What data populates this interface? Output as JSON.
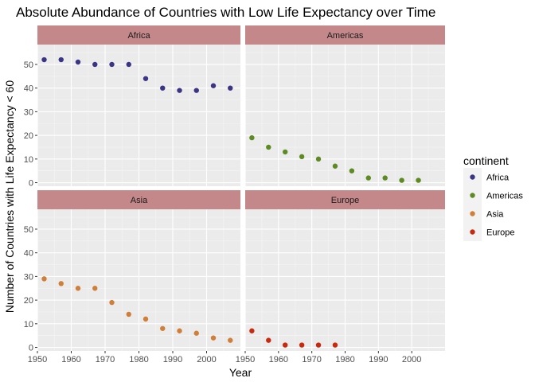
{
  "chart_data": {
    "type": "scatter",
    "title": "Absolute Abundance of Countries with Low Life Expectancy over Time",
    "xlabel": "Year",
    "ylabel": "Number of Countries with Life Expectancy < 60",
    "xlim": [
      1950,
      2010
    ],
    "ylim": [
      0,
      60
    ],
    "x_ticks": [
      1950,
      1960,
      1970,
      1980,
      1990,
      2000
    ],
    "y_ticks": [
      0,
      10,
      20,
      30,
      40,
      50
    ],
    "grid": true,
    "facet": "wrap 2x2",
    "legend": {
      "title": "continent",
      "placement": "right",
      "entries": [
        "Africa",
        "Americas",
        "Asia",
        "Europe"
      ]
    },
    "colors": {
      "Africa": "#3b3585",
      "Americas": "#5d8a22",
      "Asia": "#d07f3a",
      "Europe": "#c8290f",
      "strip": "#c4888a",
      "panel": "#ebebeb",
      "grid": "#ffffff"
    },
    "panels": [
      {
        "name": "Africa",
        "x": [
          1952,
          1957,
          1962,
          1967,
          1972,
          1977,
          1982,
          1987,
          1992,
          1997,
          2002,
          2007
        ],
        "y": [
          52,
          52,
          51,
          50,
          50,
          50,
          44,
          40,
          39,
          39,
          41,
          40
        ]
      },
      {
        "name": "Americas",
        "x": [
          1952,
          1957,
          1962,
          1967,
          1972,
          1977,
          1982,
          1987,
          1992,
          1997,
          2002
        ],
        "y": [
          19,
          15,
          13,
          11,
          10,
          7,
          5,
          2,
          2,
          1,
          1
        ]
      },
      {
        "name": "Asia",
        "x": [
          1952,
          1957,
          1962,
          1967,
          1972,
          1977,
          1982,
          1987,
          1992,
          1997,
          2002,
          2007
        ],
        "y": [
          29,
          27,
          25,
          25,
          19,
          14,
          12,
          8,
          7,
          6,
          4,
          3
        ]
      },
      {
        "name": "Europe",
        "x": [
          1952,
          1957,
          1962,
          1967,
          1972,
          1977
        ],
        "y": [
          7,
          3,
          1,
          1,
          1,
          1
        ]
      }
    ]
  }
}
